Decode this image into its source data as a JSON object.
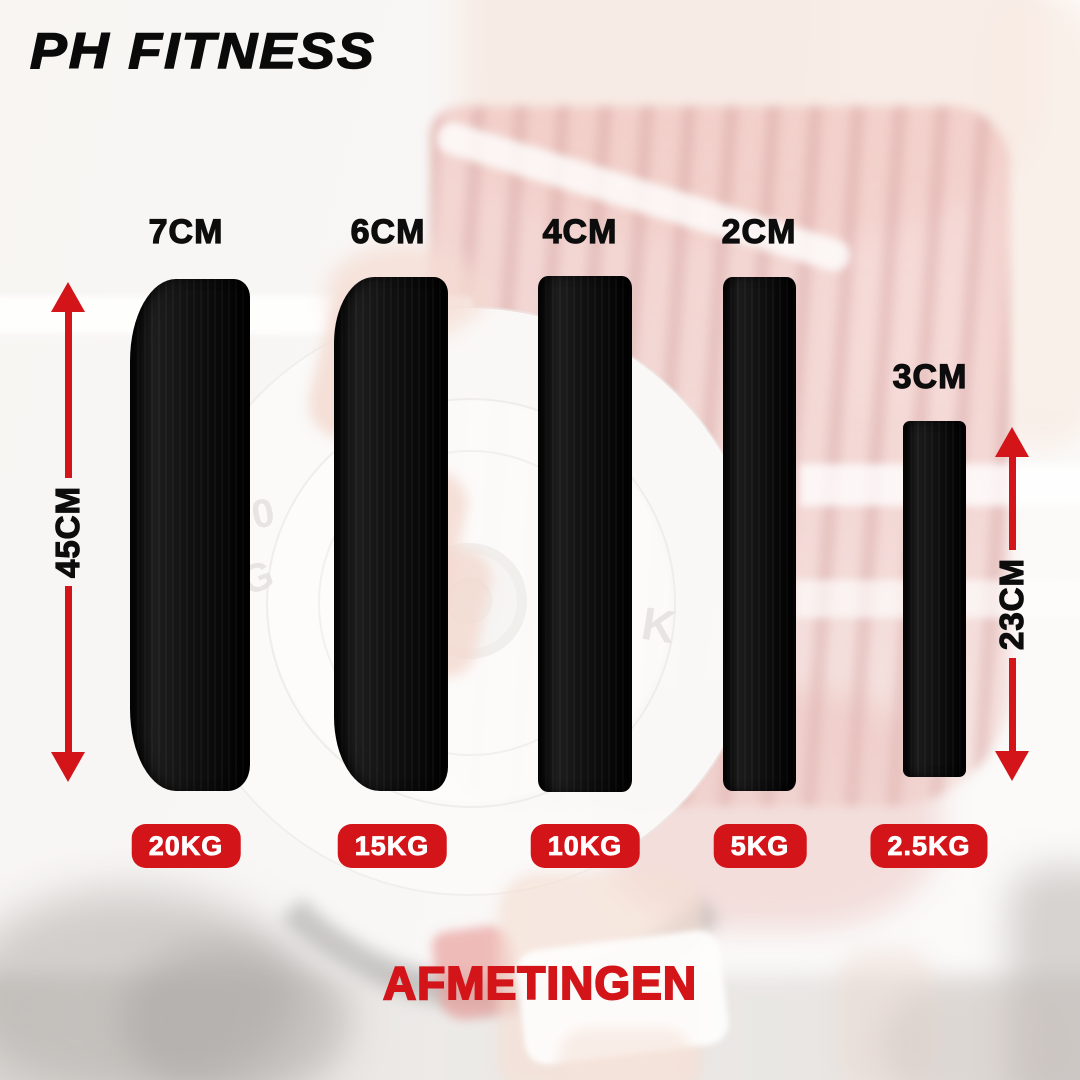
{
  "logo": {
    "text": "PH FITNESS"
  },
  "title": {
    "text": "AFMETINGEN"
  },
  "colors": {
    "accent_red": "#d31419",
    "ink": "#0d0d0d",
    "badge_text": "#ffffff"
  },
  "plates": [
    {
      "thickness": "7CM",
      "weight": "20KG"
    },
    {
      "thickness": "6CM",
      "weight": "15KG"
    },
    {
      "thickness": "4CM",
      "weight": "10KG"
    },
    {
      "thickness": "2CM",
      "weight": "5KG"
    },
    {
      "thickness": "3CM",
      "weight": "2.5KG"
    }
  ],
  "dimensions": {
    "large_plate_height": "45CM",
    "small_plate_height": "23CM"
  },
  "background_photo": {
    "ghost_plate_markings": [
      "0",
      "G",
      "K"
    ]
  }
}
